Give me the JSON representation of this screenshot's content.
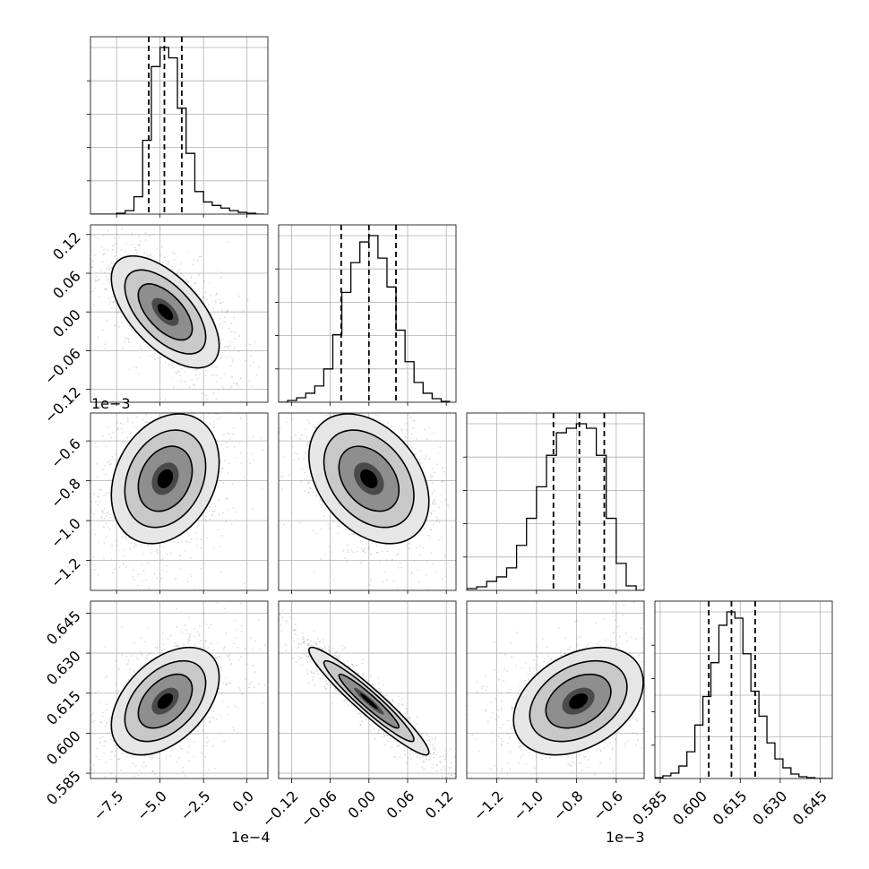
{
  "chart_data": {
    "type": "corner",
    "parameter_count": 4,
    "axes": [
      {
        "range": [
          -9.0,
          1.2
        ],
        "ticks": [
          -7.5,
          -5.0,
          -2.5,
          0.0
        ],
        "tick_labels": [
          "−7.5",
          "−5.0",
          "−2.5",
          "0.0"
        ],
        "offset_text": "1e−4"
      },
      {
        "range": [
          -0.14,
          0.135
        ],
        "ticks": [
          -0.12,
          -0.06,
          0.0,
          0.06,
          0.12
        ],
        "tick_labels": [
          "−0.12",
          "−0.06",
          "0.00",
          "0.06",
          "0.12"
        ],
        "offset_text": ""
      },
      {
        "range": [
          -1.35,
          -0.46
        ],
        "ticks": [
          -1.2,
          -1.0,
          -0.8,
          -0.6
        ],
        "tick_labels": [
          "−1.2",
          "−1.0",
          "−0.8",
          "−0.6"
        ],
        "offset_text": "1e−3"
      },
      {
        "range": [
          0.583,
          0.6495
        ],
        "ticks": [
          0.585,
          0.6,
          0.615,
          0.63,
          0.645
        ],
        "tick_labels": [
          "0.585",
          "0.600",
          "0.615",
          "0.630",
          "0.645"
        ],
        "offset_text": ""
      }
    ],
    "histograms": [
      {
        "param": 0,
        "bin_edges": [
          -9.0,
          -8.5,
          -8.0,
          -7.5,
          -7.0,
          -6.5,
          -6.0,
          -5.5,
          -5.0,
          -4.5,
          -4.0,
          -3.5,
          -3.0,
          -2.5,
          -2.0,
          -1.5,
          -1.0,
          -0.5,
          0.0,
          0.5,
          1.0
        ],
        "counts": [
          0,
          0,
          0,
          1,
          4,
          20,
          85,
          170,
          192,
          180,
          122,
          70,
          26,
          14,
          10,
          7,
          4,
          2,
          1,
          0
        ],
        "quantiles": [
          -5.65,
          -4.75,
          -3.75
        ]
      },
      {
        "param": 1,
        "bin_edges": [
          -0.14,
          -0.126,
          -0.112,
          -0.098,
          -0.084,
          -0.07,
          -0.056,
          -0.042,
          -0.028,
          -0.014,
          0.0,
          0.014,
          0.028,
          0.042,
          0.056,
          0.07,
          0.084,
          0.098,
          0.112,
          0.126
        ],
        "counts": [
          0,
          2,
          5,
          10,
          18,
          37,
          75,
          122,
          155,
          178,
          185,
          160,
          128,
          80,
          45,
          22,
          10,
          4,
          1
        ],
        "quantiles": [
          -0.043,
          0.0,
          0.042
        ]
      },
      {
        "param": 2,
        "bin_edges": [
          -1.35,
          -1.3,
          -1.25,
          -1.2,
          -1.15,
          -1.1,
          -1.05,
          -1.0,
          -0.95,
          -0.9,
          -0.85,
          -0.8,
          -0.75,
          -0.7,
          -0.65,
          -0.6,
          -0.55,
          -0.5,
          -0.46
        ],
        "counts": [
          2,
          4,
          10,
          15,
          25,
          50,
          80,
          115,
          150,
          175,
          180,
          185,
          180,
          150,
          80,
          30,
          5,
          0
        ],
        "quantiles": [
          -0.915,
          -0.785,
          -0.66
        ]
      },
      {
        "param": 3,
        "bin_edges": [
          0.583,
          0.586,
          0.589,
          0.592,
          0.595,
          0.598,
          0.601,
          0.604,
          0.607,
          0.61,
          0.613,
          0.616,
          0.619,
          0.622,
          0.625,
          0.628,
          0.631,
          0.634,
          0.637,
          0.64,
          0.643,
          0.646,
          0.6495
        ],
        "counts": [
          1,
          3,
          6,
          14,
          30,
          60,
          92,
          130,
          172,
          187,
          180,
          140,
          98,
          70,
          40,
          22,
          12,
          5,
          2,
          1,
          0,
          0
        ],
        "quantiles": [
          0.6032,
          0.6117,
          0.6206
        ]
      }
    ],
    "contour_panels": [
      {
        "x_param": 0,
        "y_param": 1,
        "center": [
          -4.7,
          0.0
        ],
        "sd": [
          1.0,
          0.028
        ],
        "corr": -0.6
      },
      {
        "x_param": 0,
        "y_param": 2,
        "center": [
          -4.7,
          -0.79
        ],
        "sd": [
          1.0,
          0.105
        ],
        "corr": 0.25
      },
      {
        "x_param": 0,
        "y_param": 3,
        "center": [
          -4.7,
          0.612
        ],
        "sd": [
          1.0,
          0.0065
        ],
        "corr": 0.45
      },
      {
        "x_param": 1,
        "y_param": 2,
        "center": [
          0.0,
          -0.79
        ],
        "sd": [
          0.03,
          0.105
        ],
        "corr": -0.35
      },
      {
        "x_param": 1,
        "y_param": 3,
        "center": [
          0.0,
          0.612
        ],
        "sd": [
          0.03,
          0.0065
        ],
        "corr": -0.95
      },
      {
        "x_param": 2,
        "y_param": 3,
        "center": [
          -0.79,
          0.612
        ],
        "sd": [
          0.105,
          0.0065
        ],
        "corr": 0.35
      }
    ],
    "contour_levels_sigma": [
      0.5,
      1.0,
      1.5,
      2.0
    ],
    "grid": true,
    "legend": "none"
  }
}
